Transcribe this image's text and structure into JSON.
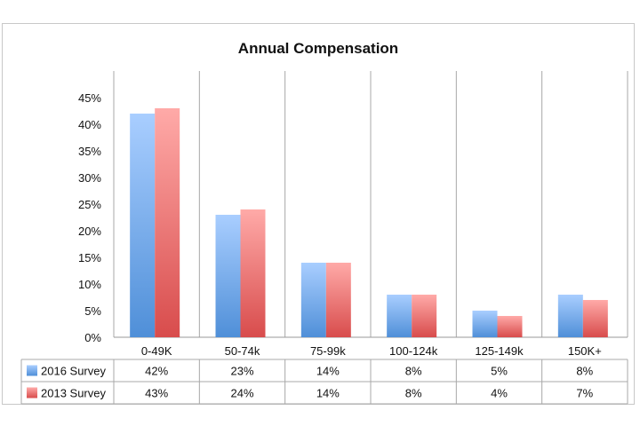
{
  "chart_data": {
    "type": "bar",
    "title": "Annual Compensation",
    "categories": [
      "0-49K",
      "50-74k",
      "75-99k",
      "100-124k",
      "125-149k",
      "150K+"
    ],
    "series": [
      {
        "name": "2016 Survey",
        "values": [
          42,
          23,
          14,
          8,
          5,
          8
        ],
        "labels": [
          "42%",
          "23%",
          "14%",
          "8%",
          "5%",
          "8%"
        ],
        "color": "#5b9bd5"
      },
      {
        "name": "2013 Survey",
        "values": [
          43,
          24,
          14,
          8,
          4,
          7
        ],
        "labels": [
          "43%",
          "24%",
          "14%",
          "8%",
          "4%",
          "7%"
        ],
        "color": "#e05a5a"
      }
    ],
    "ylim": [
      0,
      45
    ],
    "yticks": [
      "0%",
      "5%",
      "10%",
      "15%",
      "20%",
      "25%",
      "30%",
      "35%",
      "40%",
      "45%"
    ],
    "grid": "vertical category lines",
    "legend": "data table below chart"
  }
}
